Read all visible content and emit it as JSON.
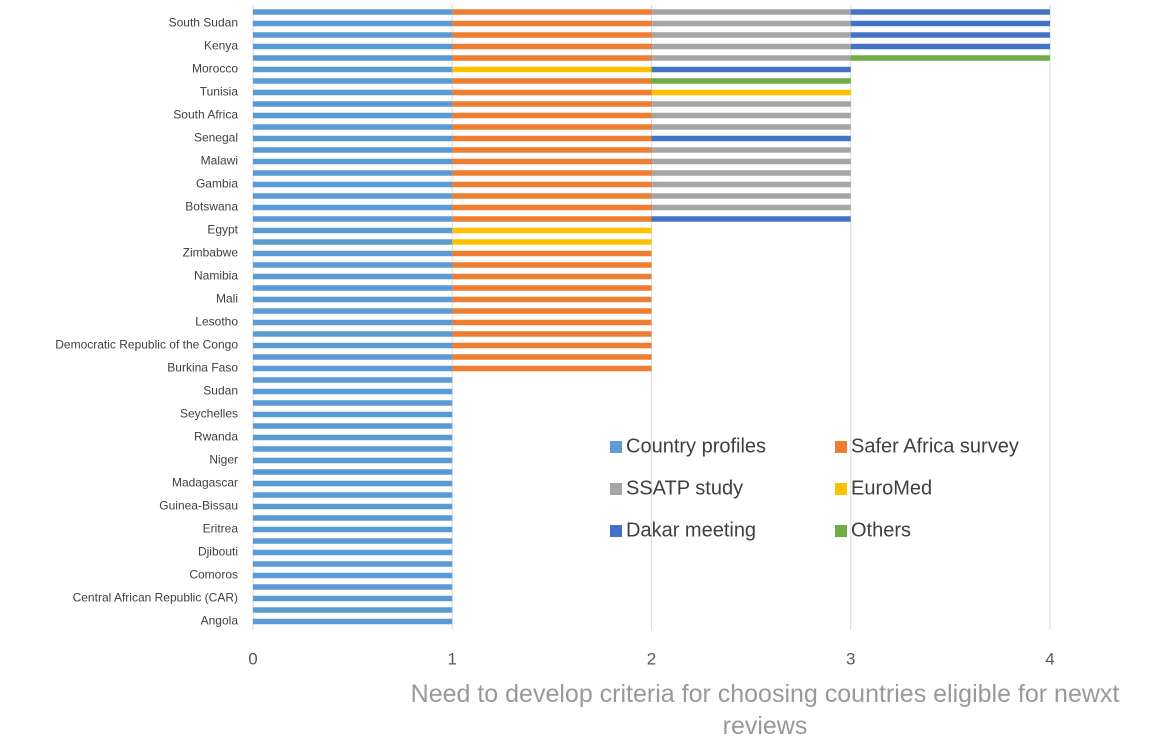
{
  "chart_data": {
    "type": "stacked-bar-horizontal",
    "x_label": "Need to develop criteria for choosing countries eligible for newxt reviews",
    "categories": [
      null,
      "South Sudan",
      null,
      "Kenya",
      null,
      "Morocco",
      null,
      "Tunisia",
      null,
      "South Africa",
      null,
      "Senegal",
      null,
      "Malawi",
      null,
      "Gambia",
      null,
      "Botswana",
      null,
      "Egypt",
      null,
      "Zimbabwe",
      null,
      "Namibia",
      null,
      "Mali",
      null,
      "Lesotho",
      null,
      "Democratic Republic of the Congo",
      null,
      "Burkina Faso",
      null,
      "Sudan",
      null,
      "Seychelles",
      null,
      "Rwanda",
      null,
      "Niger",
      null,
      "Madagascar",
      null,
      "Guinea-Bissau",
      null,
      "Eritrea",
      null,
      "Djibouti",
      null,
      "Comoros",
      null,
      "Central African Republic (CAR)",
      null,
      "Angola"
    ],
    "series": [
      {
        "name": "Country profiles",
        "color": "#5b9bd5",
        "values": [
          1,
          1,
          1,
          1,
          1,
          1,
          1,
          1,
          1,
          1,
          1,
          1,
          1,
          1,
          1,
          1,
          1,
          1,
          1,
          1,
          1,
          1,
          1,
          1,
          1,
          1,
          1,
          1,
          1,
          1,
          1,
          1,
          1,
          1,
          1,
          1,
          1,
          1,
          1,
          1,
          1,
          1,
          1,
          1,
          1,
          1,
          1,
          1,
          1,
          1,
          1,
          1,
          1,
          1
        ]
      },
      {
        "name": "Safer Africa survey",
        "color": "#ed7d31",
        "values": [
          1,
          1,
          1,
          1,
          1,
          0,
          1,
          1,
          1,
          1,
          1,
          1,
          1,
          1,
          1,
          1,
          1,
          1,
          1,
          0,
          0,
          1,
          1,
          1,
          1,
          1,
          1,
          1,
          1,
          1,
          1,
          1,
          0,
          0,
          0,
          0,
          0,
          0,
          0,
          0,
          0,
          0,
          0,
          0,
          0,
          0,
          0,
          0,
          0,
          0,
          0,
          0,
          0,
          0
        ]
      },
      {
        "name": "SSATP study",
        "color": "#a5a5a5",
        "values": [
          1,
          1,
          1,
          1,
          1,
          0,
          0,
          0,
          1,
          1,
          1,
          0,
          1,
          1,
          1,
          1,
          1,
          1,
          0,
          0,
          0,
          0,
          0,
          0,
          0,
          0,
          0,
          0,
          0,
          0,
          0,
          0,
          0,
          0,
          0,
          0,
          0,
          0,
          0,
          0,
          0,
          0,
          0,
          0,
          0,
          0,
          0,
          0,
          0,
          0,
          0,
          0,
          0,
          0
        ]
      },
      {
        "name": "EuroMed",
        "color": "#ffc000",
        "values": [
          0,
          0,
          0,
          0,
          0,
          1,
          0,
          1,
          0,
          0,
          0,
          0,
          0,
          0,
          0,
          0,
          0,
          0,
          0,
          1,
          1,
          0,
          0,
          0,
          0,
          0,
          0,
          0,
          0,
          0,
          0,
          0,
          0,
          0,
          0,
          0,
          0,
          0,
          0,
          0,
          0,
          0,
          0,
          0,
          0,
          0,
          0,
          0,
          0,
          0,
          0,
          0,
          0,
          0
        ]
      },
      {
        "name": "Dakar meeting",
        "color": "#4472c4",
        "values": [
          1,
          1,
          1,
          1,
          0,
          1,
          0,
          0,
          0,
          0,
          0,
          1,
          0,
          0,
          0,
          0,
          0,
          0,
          1,
          0,
          0,
          0,
          0,
          0,
          0,
          0,
          0,
          0,
          0,
          0,
          0,
          0,
          0,
          0,
          0,
          0,
          0,
          0,
          0,
          0,
          0,
          0,
          0,
          0,
          0,
          0,
          0,
          0,
          0,
          0,
          0,
          0,
          0,
          0
        ]
      },
      {
        "name": "Others",
        "color": "#70ad47",
        "values": [
          0,
          0,
          0,
          0,
          1,
          0,
          1,
          0,
          0,
          0,
          0,
          0,
          0,
          0,
          0,
          0,
          0,
          0,
          0,
          0,
          0,
          0,
          0,
          0,
          0,
          0,
          0,
          0,
          0,
          0,
          0,
          0,
          0,
          0,
          0,
          0,
          0,
          0,
          0,
          0,
          0,
          0,
          0,
          0,
          0,
          0,
          0,
          0,
          0,
          0,
          0,
          0,
          0,
          0
        ]
      }
    ],
    "xlim": [
      0,
      4
    ],
    "xticks": [
      0,
      1,
      2,
      3,
      4
    ],
    "grid": true,
    "legend": "lower right"
  }
}
